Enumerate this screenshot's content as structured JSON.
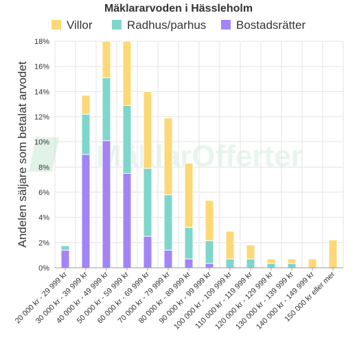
{
  "watermark": {
    "text_a": "Mäklar",
    "text_b": "Offerter",
    "color_a": "#c9e7d5",
    "color_b": "#d9efe1"
  },
  "chart_data": {
    "type": "bar",
    "stacked": true,
    "title": "Mäklararvoden i Hässleholm",
    "ylabel": "Andelen säljare som betalat arvodet",
    "xlabel": "",
    "ylim": [
      0,
      18
    ],
    "yticks": [
      "0%",
      "2%",
      "4%",
      "6%",
      "8%",
      "10%",
      "12%",
      "14%",
      "16%",
      "18%"
    ],
    "ytick_values": [
      0,
      2,
      4,
      6,
      8,
      10,
      12,
      14,
      16,
      18
    ],
    "grid": true,
    "legend_position": "top",
    "categories": [
      "20 000 kr - 29 999 kr",
      "30 000 kr - 39 999 kr",
      "40 000 kr - 49 999 kr",
      "50 000 kr - 59 999 kr",
      "60 000 kr - 69 999 kr",
      "70 000 kr - 79 999 kr",
      "80 000 kr - 89 999 kr",
      "90 000 kr - 99 999 kr",
      "100 000 kr - 109 999 kr",
      "110 000 kr - 119 999 kr",
      "120 000 kr - 129 999 kr",
      "130 000 kr - 139 999 kr",
      "140 000 kr - 149 999 kr",
      "150 000 kr eller mer"
    ],
    "series": [
      {
        "name": "Bostadsrätter",
        "color": "#a284f7",
        "values": [
          1.4,
          9.0,
          10.1,
          7.5,
          2.5,
          1.4,
          0.7,
          0.35,
          0,
          0,
          0,
          0,
          0,
          0
        ]
      },
      {
        "name": "Radhus/parhus",
        "color": "#7fd6cb",
        "values": [
          0.35,
          3.2,
          5.0,
          5.4,
          5.4,
          4.4,
          2.5,
          1.8,
          0.7,
          0.7,
          0.35,
          0.35,
          0,
          0
        ]
      },
      {
        "name": "Villor",
        "color": "#fdd877",
        "values": [
          0,
          1.5,
          2.9,
          5.1,
          6.1,
          6.1,
          5.1,
          3.2,
          2.2,
          1.1,
          0.35,
          0.35,
          0.7,
          2.2
        ]
      }
    ],
    "legend_order": [
      "Villor",
      "Radhus/parhus",
      "Bostadsrätter"
    ]
  }
}
